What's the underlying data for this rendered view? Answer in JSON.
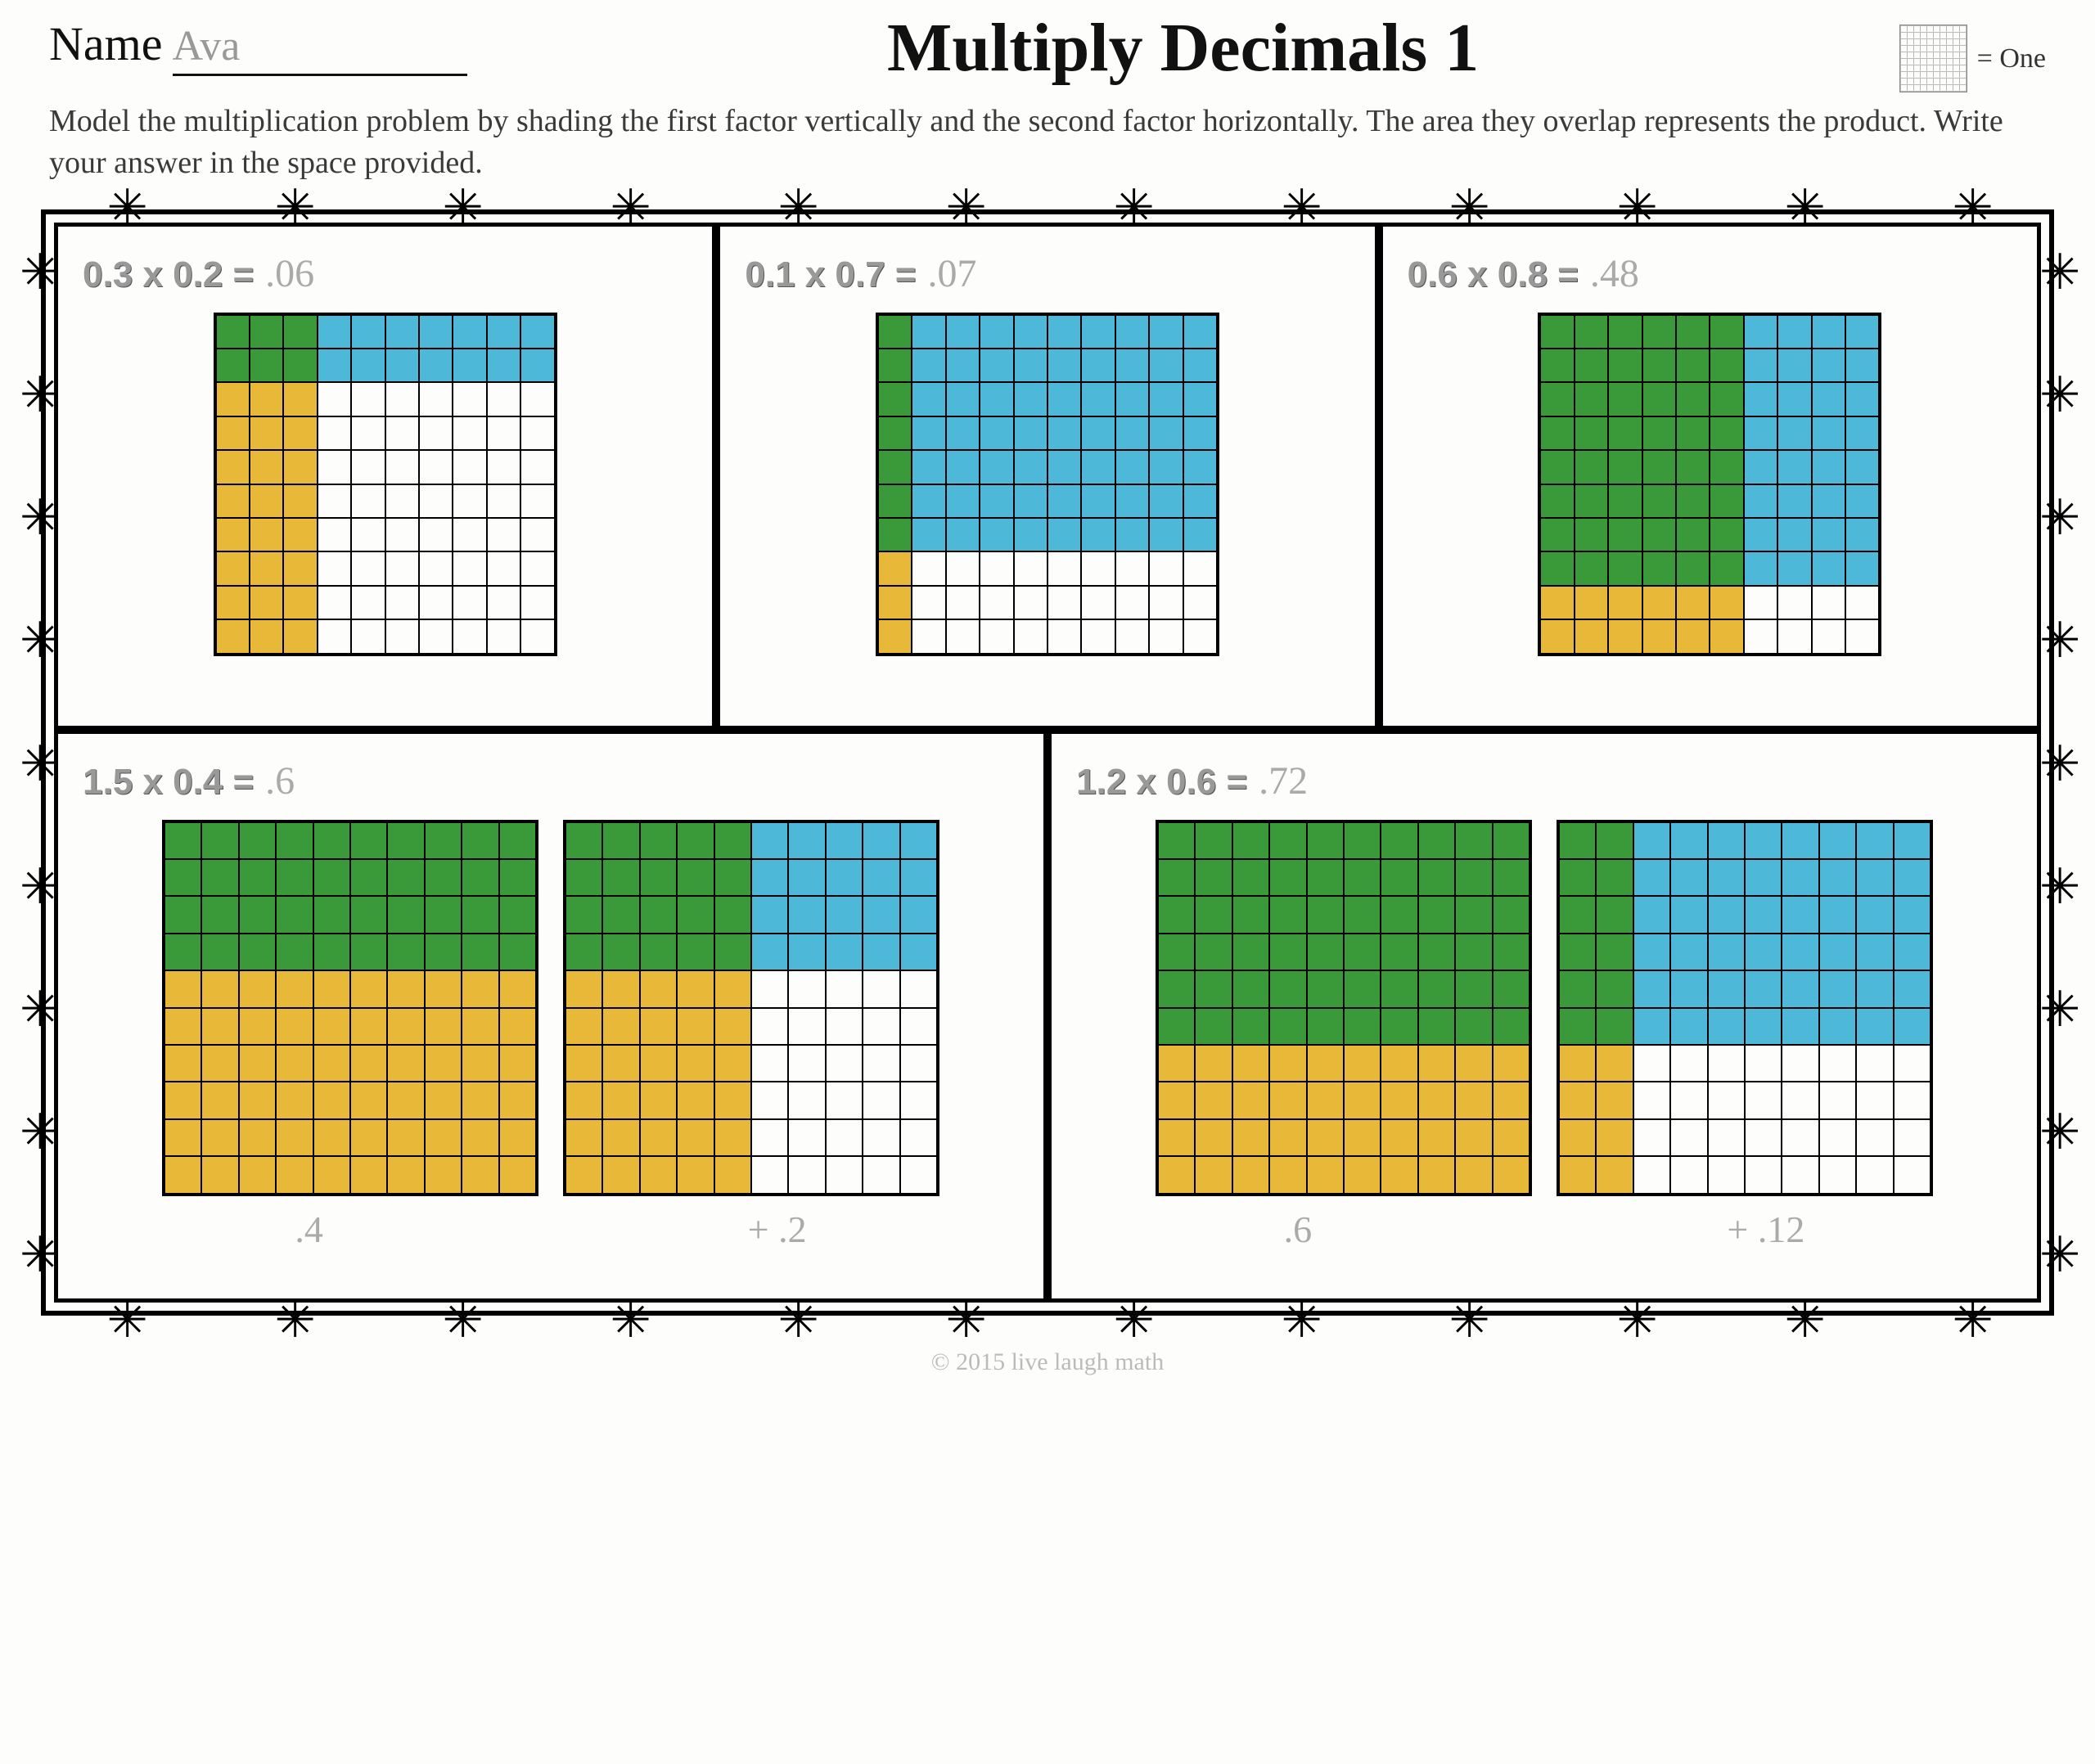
{
  "header": {
    "name_label": "Name",
    "student_name": "Ava",
    "title": "Multiply Decimals 1",
    "legend_text": "= One"
  },
  "instructions": "Model the multiplication problem by shading the first factor vertically and the second factor horizontally. The area they overlap represents the product. Write your answer in the space provided.",
  "colors": {
    "overlap": "#3a9a3a",
    "horizontal": "#4db8d8",
    "vertical": "#e8b838",
    "empty": "#fdfdfb",
    "gridline": "#000000",
    "pencil": "#aaaaaa"
  },
  "problems": [
    {
      "expr": "0.3 x 0.2 =",
      "answer": ".06",
      "grids": [
        {
          "vcols": 3,
          "hrows": 2
        }
      ]
    },
    {
      "expr": "0.1 x 0.7 =",
      "answer": ".07",
      "grids": [
        {
          "vcols": 1,
          "hrows": 7
        }
      ]
    },
    {
      "expr": "0.6 x 0.8 =",
      "answer": ".48",
      "grids": [
        {
          "vcols": 6,
          "hrows": 8
        }
      ]
    },
    {
      "expr": "1.5 x 0.4 =",
      "answer": ".6",
      "grids": [
        {
          "vcols": 10,
          "hrows": 4
        },
        {
          "vcols": 5,
          "hrows": 4
        }
      ],
      "sub": [
        ".4",
        "+  .2"
      ]
    },
    {
      "expr": "1.2 x 0.6 =",
      "answer": ".72",
      "grids": [
        {
          "vcols": 10,
          "hrows": 6
        },
        {
          "vcols": 2,
          "hrows": 6
        }
      ],
      "sub": [
        ".6",
        "+  .12"
      ]
    }
  ],
  "footer": "© 2015 live laugh math"
}
